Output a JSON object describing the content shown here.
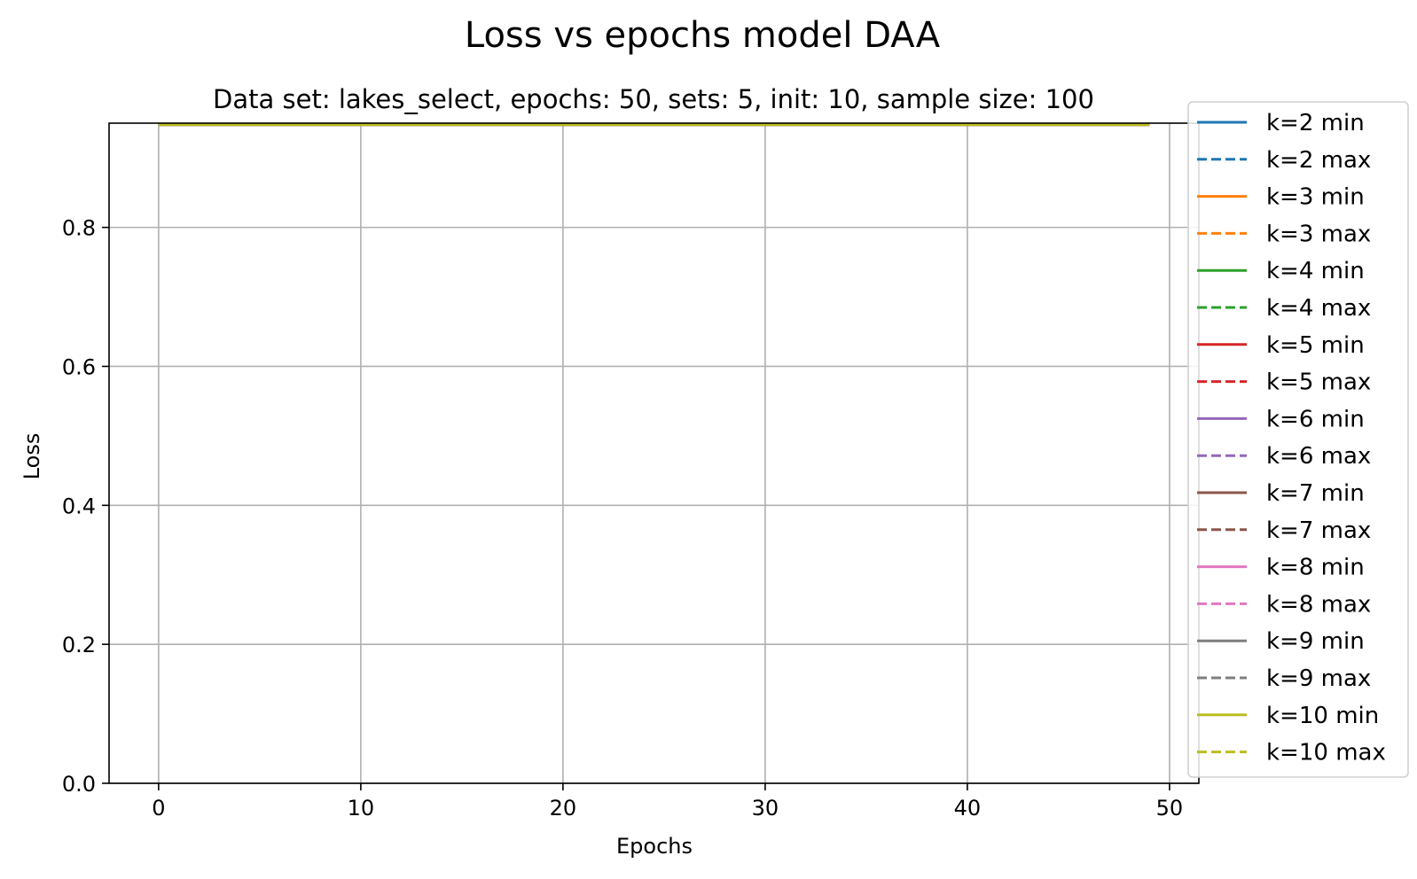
{
  "chart_data": {
    "type": "line",
    "title": "Loss vs epochs model DAA",
    "subtitle": "Data set:  lakes_select, epochs: 50, sets: 5, init: 10, sample size: 100",
    "xlabel": "Epochs",
    "ylabel": "Loss",
    "xlim": [
      -2.45,
      51.45
    ],
    "ylim": [
      0.0,
      0.95
    ],
    "xticks": [
      0,
      10,
      20,
      30,
      40,
      50
    ],
    "xtick_labels": [
      "0",
      "10",
      "20",
      "30",
      "40",
      "50"
    ],
    "yticks": [
      0.0,
      0.2,
      0.4,
      0.6,
      0.8
    ],
    "ytick_labels": [
      "0.0",
      "0.2",
      "0.4",
      "0.6",
      "0.8"
    ],
    "grid": true,
    "legend_position": "right, outside top-right",
    "x_range": [
      0,
      49
    ],
    "series": [
      {
        "name": "k=2 min",
        "color": "#1f77b4",
        "style": "solid",
        "value": 0.948
      },
      {
        "name": "k=2 max",
        "color": "#1f77b4",
        "style": "dashed",
        "value": 0.948
      },
      {
        "name": "k=3 min",
        "color": "#ff7f0e",
        "style": "solid",
        "value": 0.948
      },
      {
        "name": "k=3 max",
        "color": "#ff7f0e",
        "style": "dashed",
        "value": 0.948
      },
      {
        "name": "k=4 min",
        "color": "#2ca02c",
        "style": "solid",
        "value": 0.948
      },
      {
        "name": "k=4 max",
        "color": "#2ca02c",
        "style": "dashed",
        "value": 0.948
      },
      {
        "name": "k=5 min",
        "color": "#d62728",
        "style": "solid",
        "value": 0.948
      },
      {
        "name": "k=5 max",
        "color": "#d62728",
        "style": "dashed",
        "value": 0.948
      },
      {
        "name": "k=6 min",
        "color": "#9467bd",
        "style": "solid",
        "value": 0.948
      },
      {
        "name": "k=6 max",
        "color": "#9467bd",
        "style": "dashed",
        "value": 0.948
      },
      {
        "name": "k=7 min",
        "color": "#8c564b",
        "style": "solid",
        "value": 0.948
      },
      {
        "name": "k=7 max",
        "color": "#8c564b",
        "style": "dashed",
        "value": 0.948
      },
      {
        "name": "k=8 min",
        "color": "#e377c2",
        "style": "solid",
        "value": 0.948
      },
      {
        "name": "k=8 max",
        "color": "#e377c2",
        "style": "dashed",
        "value": 0.948
      },
      {
        "name": "k=9 min",
        "color": "#7f7f7f",
        "style": "solid",
        "value": 0.948
      },
      {
        "name": "k=9 max",
        "color": "#7f7f7f",
        "style": "dashed",
        "value": 0.948
      },
      {
        "name": "k=10 min",
        "color": "#bcbd22",
        "style": "solid",
        "value": 0.948
      },
      {
        "name": "k=10 max",
        "color": "#bcbd22",
        "style": "dashed",
        "value": 0.948
      }
    ]
  }
}
